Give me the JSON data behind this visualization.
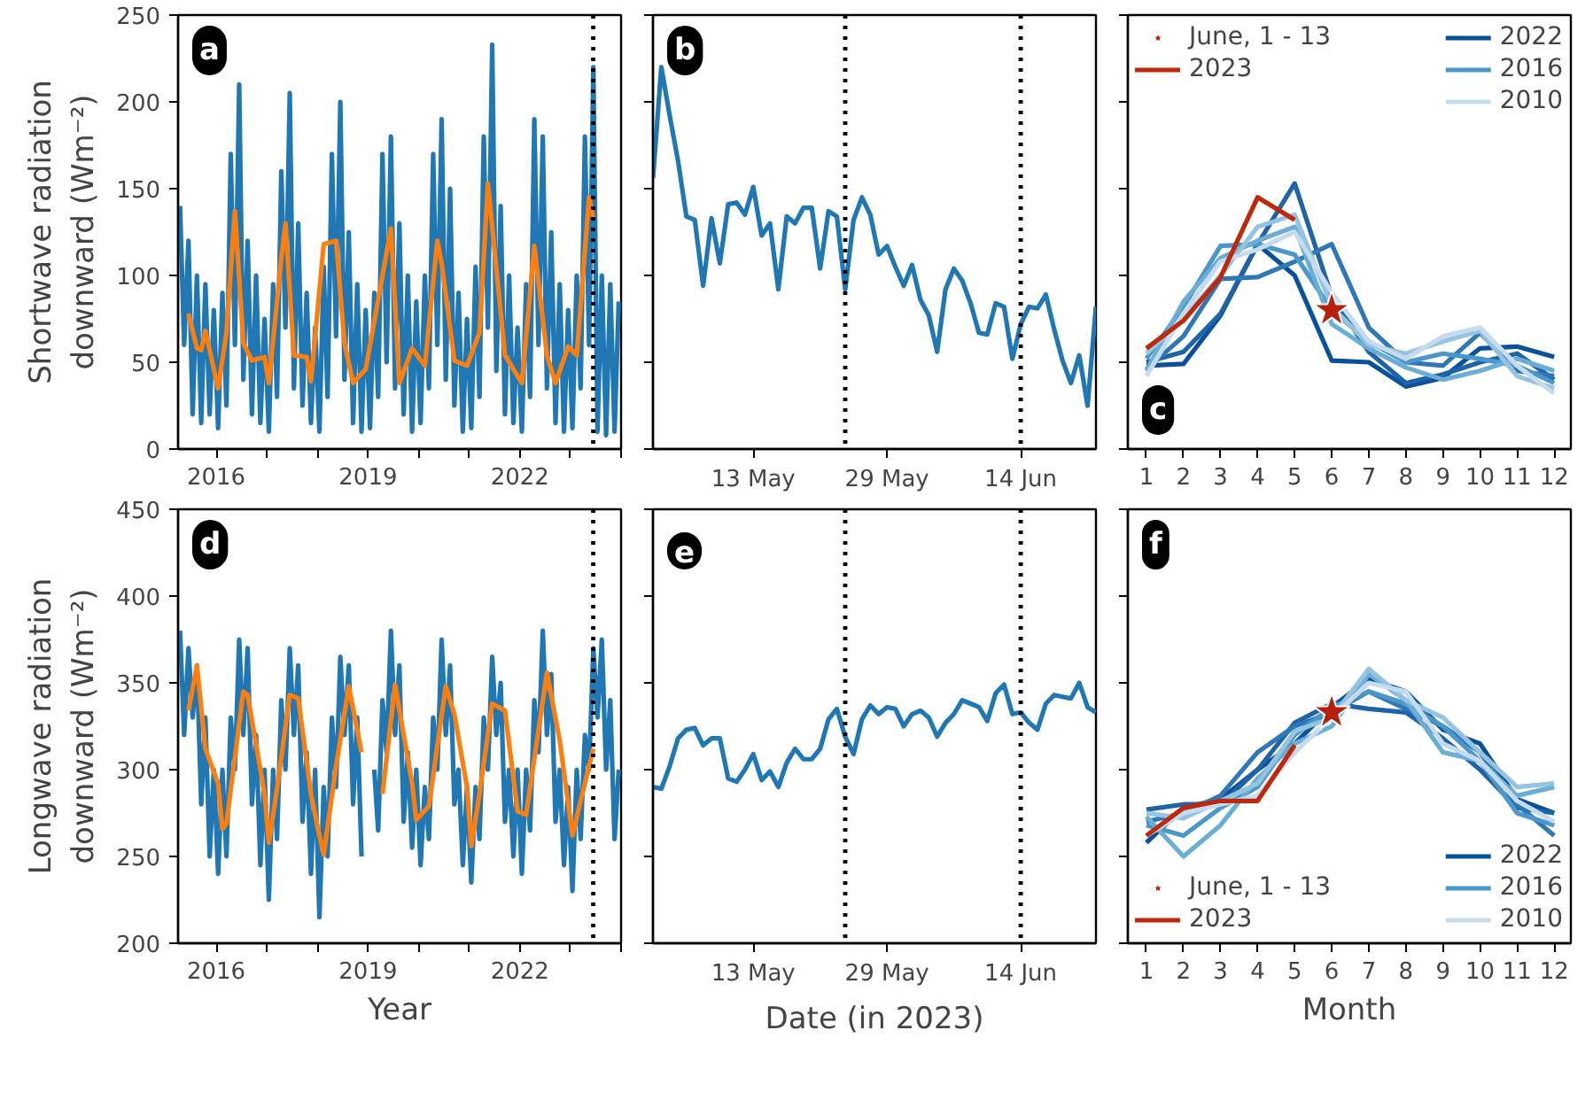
{
  "chart_data": [
    {
      "type": "line",
      "ylabel": "Shortwave radiation\ndownward (Wm⁻²)",
      "annotations": [
        "a"
      ],
      "xlim": [
        "2015-04",
        "2024"
      ],
      "ylim": [
        0,
        250
      ],
      "yticks": [
        0,
        50,
        100,
        150,
        200,
        250
      ],
      "xticks": [
        "2016",
        {
          "value": "2017",
          "label": null
        },
        {
          "value": "2018",
          "label": null
        },
        "2019",
        {
          "value": "2020",
          "label": null
        },
        {
          "value": "2021",
          "label": null
        },
        "2022",
        {
          "value": "2023",
          "label": null
        },
        {
          "value": "2024",
          "label": null
        }
      ],
      "grid": false,
      "ref_lines": [
        {
          "axis": "x",
          "value": "2023-06-14",
          "line_style": "dotted",
          "color": "#000000"
        }
      ],
      "series": [
        {
          "color": "#1f77b4",
          "x": [
            "2015-04-15",
            "2015-05-15",
            "2015-06-15",
            "2015-07-15",
            "2015-08-15",
            "2015-09-15",
            "2015-10-15",
            "2015-11-15",
            "2015-12-15",
            "2016-01-15",
            "2016-02-15",
            "2016-03-15",
            "2016-04-15",
            "2016-05-15",
            "2016-06-15",
            "2016-07-15",
            "2016-08-15",
            "2016-09-15",
            "2016-10-15",
            "2016-11-15",
            "2016-12-15",
            "2017-01-15",
            "2017-02-15",
            "2017-03-15",
            "2017-04-15",
            "2017-05-15",
            "2017-06-15",
            "2017-07-15",
            "2017-08-15",
            "2017-09-15",
            "2017-10-15",
            "2017-11-15",
            "2017-12-15",
            "2018-01-15",
            "2018-02-15",
            "2018-03-15",
            "2018-04-15",
            "2018-05-15",
            "2018-06-15",
            "2018-07-15",
            "2018-08-15",
            "2018-09-15",
            "2018-10-15",
            "2018-11-15",
            "2018-12-15",
            "2019-01-15",
            "2019-02-15",
            "2019-03-15",
            "2019-04-15",
            "2019-05-15",
            "2019-06-15",
            "2019-07-15",
            "2019-08-15",
            "2019-09-15",
            "2019-10-15",
            "2019-11-15",
            "2019-12-15",
            "2020-01-15",
            "2020-02-15",
            "2020-03-15",
            "2020-04-15",
            "2020-05-15",
            "2020-06-15",
            "2020-07-15",
            "2020-08-15",
            "2020-09-15",
            "2020-10-15",
            "2020-11-15",
            "2020-12-15",
            "2021-01-15",
            "2021-02-15",
            "2021-03-15",
            "2021-04-15",
            "2021-05-15",
            "2021-06-15",
            "2021-07-15",
            "2021-08-15",
            "2021-09-15",
            "2021-10-15",
            "2021-11-15",
            "2021-12-15",
            "2022-01-15",
            "2022-02-15",
            "2022-03-15",
            "2022-04-15",
            "2022-05-15",
            "2022-06-15",
            "2022-07-15",
            "2022-08-15",
            "2022-09-15",
            "2022-10-15",
            "2022-11-15",
            "2022-12-15",
            "2023-01-15",
            "2023-02-15",
            "2023-03-15",
            "2023-04-15",
            "2023-05-15",
            "2023-06-15",
            "2023-07-15",
            "2023-08-15",
            "2023-09-15",
            "2023-10-15",
            "2023-11-15",
            "2023-12-15"
          ],
          "values": [
            140,
            60,
            120,
            20,
            100,
            15,
            95,
            20,
            80,
            12,
            90,
            25,
            170,
            60,
            210,
            40,
            120,
            20,
            100,
            15,
            75,
            10,
            95,
            30,
            160,
            70,
            205,
            35,
            130,
            25,
            90,
            15,
            70,
            10,
            105,
            30,
            170,
            65,
            200,
            40,
            125,
            15,
            95,
            10,
            80,
            12,
            90,
            30,
            170,
            50,
            180,
            35,
            130,
            20,
            100,
            10,
            85,
            15,
            100,
            35,
            170,
            60,
            190,
            40,
            150,
            25,
            90,
            10,
            75,
            12,
            105,
            30,
            180,
            70,
            233,
            45,
            140,
            20,
            100,
            15,
            70,
            10,
            95,
            30,
            190,
            60,
            180,
            35,
            125,
            15,
            95,
            10,
            80,
            12,
            100,
            35,
            180,
            60,
            220,
            10,
            100,
            8,
            95,
            10,
            85
          ]
        },
        {
          "color": "#ff7f0e",
          "x": [
            "2015-06-15",
            "2015-08-15",
            "2015-09-15",
            "2015-10-15",
            "2016-01-15",
            "2016-03-15",
            "2016-05-15",
            "2016-07-15",
            "2016-09-15",
            "2016-12-15",
            "2017-01-15",
            "2017-04-15",
            "2017-05-15",
            "2017-07-15",
            "2017-10-15",
            "2017-11-15",
            "2018-02-15",
            "2018-05-15",
            "2018-07-15",
            "2018-09-15",
            "2018-12-15",
            "2019-06-15",
            "2019-08-15",
            "2019-11-15",
            "2020-02-15",
            "2020-05-15",
            "2020-06-15",
            "2020-09-15",
            "2020-12-15",
            "2021-03-15",
            "2021-05-15",
            "2021-09-15",
            "2022-01-15",
            "2022-04-15",
            "2022-07-15",
            "2022-09-15",
            "2022-12-15",
            "2023-02-15",
            "2023-05-15",
            "2023-06-15"
          ],
          "values": [
            78,
            58,
            57,
            68,
            35,
            67,
            137,
            61,
            51,
            53,
            38,
            110,
            130,
            54,
            53,
            39,
            118,
            120,
            61,
            38,
            46,
            127,
            38,
            58,
            48,
            120,
            107,
            51,
            48,
            67,
            153,
            54,
            38,
            117,
            54,
            38,
            59,
            54,
            145,
            133
          ]
        }
      ]
    },
    {
      "type": "line",
      "annotations": [
        "b"
      ],
      "xlim": [
        "2023-05-01",
        "2023-06-23"
      ],
      "ylim": [
        0,
        250
      ],
      "yticks": [
        0,
        50,
        100,
        150,
        200,
        250
      ],
      "tick_labels": "x",
      "grid": false,
      "xticks": [
        {
          "value": "2023-05-13",
          "label": "13 May"
        },
        {
          "value": "2023-05-29",
          "label": "29 May"
        },
        {
          "value": "2023-06-14",
          "label": "14 Jun"
        }
      ],
      "ref_lines": [
        {
          "axis": "x",
          "value": "2023-05-24",
          "line_style": "dotted",
          "color": "#000000"
        },
        {
          "axis": "x",
          "value": "2023-06-14",
          "line_style": "dotted",
          "color": "#000000"
        }
      ],
      "series": [
        {
          "color": "#1f77b4",
          "x": [
            "2023-05-01",
            "2023-05-02",
            "2023-05-03",
            "2023-05-04",
            "2023-05-05",
            "2023-05-06",
            "2023-05-07",
            "2023-05-08",
            "2023-05-09",
            "2023-05-10",
            "2023-05-11",
            "2023-05-12",
            "2023-05-13",
            "2023-05-14",
            "2023-05-15",
            "2023-05-16",
            "2023-05-17",
            "2023-05-18",
            "2023-05-19",
            "2023-05-20",
            "2023-05-21",
            "2023-05-22",
            "2023-05-23",
            "2023-05-24",
            "2023-05-25",
            "2023-05-26",
            "2023-05-27",
            "2023-05-28",
            "2023-05-29",
            "2023-05-30",
            "2023-05-31",
            "2023-06-01",
            "2023-06-02",
            "2023-06-03",
            "2023-06-04",
            "2023-06-05",
            "2023-06-06",
            "2023-06-07",
            "2023-06-08",
            "2023-06-09",
            "2023-06-10",
            "2023-06-11",
            "2023-06-12",
            "2023-06-13",
            "2023-06-14",
            "2023-06-15",
            "2023-06-16",
            "2023-06-17",
            "2023-06-18",
            "2023-06-19",
            "2023-06-20",
            "2023-06-21",
            "2023-06-22",
            "2023-06-23"
          ],
          "values": [
            156,
            220,
            192,
            166,
            134,
            132,
            94,
            133,
            107,
            141,
            142,
            135,
            151,
            123,
            130,
            92,
            134,
            130,
            139,
            139,
            104,
            137,
            134,
            92,
            132,
            145,
            135,
            112,
            117,
            105,
            94,
            106,
            86,
            77,
            56,
            92,
            104,
            97,
            84,
            67,
            66,
            84,
            82,
            52,
            72,
            82,
            81,
            89,
            69,
            51,
            38,
            54,
            25,
            82
          ]
        }
      ]
    },
    {
      "type": "line",
      "annotations": [
        "c"
      ],
      "xlim": [
        0.5,
        12.45
      ],
      "ylim": [
        0,
        250
      ],
      "yticks": [
        0,
        50,
        100,
        150,
        200,
        250
      ],
      "xticks": [
        1,
        2,
        3,
        4,
        5,
        6,
        7,
        8,
        9,
        10,
        11,
        12
      ],
      "tick_labels": "x",
      "grid": false,
      "legend": "top",
      "series": [
        {
          "name": "2022",
          "color": "#08519c",
          "x": [
            1,
            2,
            3,
            4,
            5,
            6,
            7,
            8,
            9,
            10,
            11,
            12
          ],
          "values": [
            48,
            49,
            77,
            118,
            100,
            51,
            50,
            36,
            41,
            58,
            59,
            53
          ]
        },
        {
          "color": "#1f63a8",
          "x": [
            1,
            2,
            3,
            4,
            5,
            6,
            7,
            8,
            9,
            10,
            11,
            12
          ],
          "values": [
            50,
            56,
            78,
            118,
            153,
            88,
            56,
            38,
            43,
            50,
            55,
            40
          ]
        },
        {
          "color": "#2f78b8",
          "x": [
            1,
            2,
            3,
            4,
            5,
            6,
            7,
            8,
            9,
            10,
            11,
            12
          ],
          "values": [
            46,
            65,
            98,
            99,
            108,
            118,
            70,
            50,
            48,
            67,
            45,
            42
          ]
        },
        {
          "name": "2016",
          "color": "#4a98c9",
          "x": [
            1,
            2,
            3,
            4,
            5,
            6,
            7,
            8,
            9,
            10,
            11,
            12
          ],
          "values": [
            52,
            82,
            117,
            118,
            112,
            80,
            62,
            50,
            55,
            52,
            48,
            38
          ]
        },
        {
          "color": "#6aaed6",
          "x": [
            1,
            2,
            3,
            4,
            5,
            6,
            7,
            8,
            9,
            10,
            11,
            12
          ],
          "values": [
            45,
            85,
            110,
            120,
            128,
            72,
            58,
            47,
            40,
            45,
            52,
            45
          ]
        },
        {
          "color": "#94c4df",
          "x": [
            1,
            2,
            3,
            4,
            5,
            6,
            7,
            8,
            9,
            10,
            11,
            12
          ],
          "values": [
            55,
            75,
            100,
            128,
            135,
            82,
            60,
            55,
            62,
            68,
            42,
            35
          ]
        },
        {
          "name": "2010",
          "color": "#c6dbef",
          "x": [
            1,
            2,
            3,
            4,
            5,
            6,
            7,
            8,
            9,
            10,
            11,
            12
          ],
          "values": [
            42,
            78,
            108,
            115,
            125,
            90,
            62,
            52,
            65,
            70,
            48,
            32
          ]
        },
        {
          "name": "2023",
          "color": "#c0280c",
          "x": [
            1,
            2,
            3,
            4,
            5
          ],
          "values": [
            58,
            74,
            99,
            145,
            132
          ]
        },
        {
          "name": "June, 1 - 13",
          "type": "scatter",
          "marker": "star",
          "color": "#b5200d",
          "x": [
            6
          ],
          "values": [
            80
          ]
        }
      ]
    },
    {
      "type": "line",
      "ylabel": "Longwave radiation\ndownward (Wm⁻²)",
      "xlabel": "Year",
      "annotations": [
        "d"
      ],
      "xlim": [
        "2015-04",
        "2024"
      ],
      "ylim": [
        200,
        450
      ],
      "yticks": [
        200,
        250,
        300,
        350,
        400,
        450
      ],
      "xticks": [
        "2016",
        {
          "value": "2017",
          "label": null
        },
        {
          "value": "2018",
          "label": null
        },
        "2019",
        {
          "value": "2020",
          "label": null
        },
        {
          "value": "2021",
          "label": null
        },
        "2022",
        {
          "value": "2023",
          "label": null
        },
        {
          "value": "2024",
          "label": null
        }
      ],
      "grid": false,
      "ref_lines": [
        {
          "axis": "x",
          "value": "2023-06-14",
          "line_style": "dotted",
          "color": "#000000"
        }
      ],
      "series": [
        {
          "color": "#1f77b4",
          "x": [
            "2015-04-15",
            "2015-05-15",
            "2015-06-15",
            "2015-07-15",
            "2015-08-15",
            "2015-09-15",
            "2015-10-15",
            "2015-11-15",
            "2015-12-15",
            "2016-01-15",
            "2016-02-15",
            "2016-03-15",
            "2016-04-15",
            "2016-05-15",
            "2016-06-15",
            "2016-07-15",
            "2016-08-15",
            "2016-09-15",
            "2016-10-15",
            "2016-11-15",
            "2016-12-15",
            "2017-01-15",
            "2017-02-15",
            "2017-03-15",
            "2017-04-15",
            "2017-05-15",
            "2017-06-15",
            "2017-07-15",
            "2017-08-15",
            "2017-09-15",
            "2017-10-15",
            "2017-11-15",
            "2017-12-15",
            "2018-01-15",
            "2018-02-15",
            "2018-03-15",
            "2018-04-15",
            "2018-05-15",
            "2018-06-15",
            "2018-07-15",
            "2018-08-15",
            "2018-09-15",
            "2018-10-15",
            "2018-11-15",
            "2018-12-15",
            "2019-01-15",
            "2019-02-15",
            "2019-03-15",
            "2019-04-15",
            "2019-05-15",
            "2019-06-15",
            "2019-07-15",
            "2019-08-15",
            "2019-09-15",
            "2019-10-15",
            "2019-11-15",
            "2019-12-15",
            "2020-01-15",
            "2020-02-15",
            "2020-03-15",
            "2020-04-15",
            "2020-05-15",
            "2020-06-15",
            "2020-07-15",
            "2020-08-15",
            "2020-09-15",
            "2020-10-15",
            "2020-11-15",
            "2020-12-15",
            "2021-01-15",
            "2021-02-15",
            "2021-03-15",
            "2021-04-15",
            "2021-05-15",
            "2021-06-15",
            "2021-07-15",
            "2021-08-15",
            "2021-09-15",
            "2021-10-15",
            "2021-11-15",
            "2021-12-15",
            "2022-01-15",
            "2022-02-15",
            "2022-03-15",
            "2022-04-15",
            "2022-05-15",
            "2022-06-15",
            "2022-07-15",
            "2022-08-15",
            "2022-09-15",
            "2022-10-15",
            "2022-11-15",
            "2022-12-15",
            "2023-01-15",
            "2023-02-15",
            "2023-03-15",
            "2023-04-15",
            "2023-05-15",
            "2023-06-15",
            "2023-07-15",
            "2023-08-15",
            "2023-09-15",
            "2023-10-15",
            "2023-11-15",
            "2023-12-15"
          ],
          "values": [
            380,
            320,
            370,
            330,
            360,
            280,
            330,
            250,
            300,
            240,
            300,
            250,
            330,
            300,
            375,
            320,
            370,
            280,
            320,
            245,
            300,
            225,
            300,
            260,
            340,
            300,
            370,
            320,
            360,
            270,
            310,
            240,
            300,
            215,
            290,
            250,
            330,
            290,
            365,
            320,
            360,
            280,
            330,
            250,
            null,
            null,
            300,
            265,
            340,
            310,
            380,
            320,
            360,
            270,
            310,
            255,
            300,
            245,
            290,
            260,
            330,
            300,
            375,
            320,
            360,
            280,
            300,
            245,
            290,
            235,
            290,
            260,
            330,
            300,
            365,
            320,
            350,
            270,
            300,
            250,
            300,
            240,
            300,
            265,
            340,
            310,
            380,
            320,
            355,
            270,
            300,
            245,
            290,
            230,
            300,
            260,
            320,
            300,
            370,
            330,
            375,
            300,
            340,
            260,
            300
          ]
        },
        {
          "color": "#ff7f0e",
          "x": [
            "2015-06-15",
            "2015-08-15",
            "2015-10-15",
            "2016-01-15",
            "2016-02-15",
            "2016-03-15",
            "2016-07-15",
            "2016-08-15",
            "2016-12-15",
            "2017-01-15",
            "2017-03-15",
            "2017-06-15",
            "2017-08-15",
            "2017-11-15",
            "2018-01-15",
            "2018-02-15",
            "2018-05-15",
            "2018-08-15",
            "2018-11-15",
            "2019-01-15",
            "2019-04-15",
            "2019-07-15",
            "2019-11-15",
            "2019-12-15",
            "2020-03-15",
            "2020-07-15",
            "2020-09-15",
            "2020-12-15",
            "2021-01-15",
            "2021-03-15",
            "2021-06-15",
            "2021-09-15",
            "2021-12-15",
            "2022-02-15",
            "2022-07-15",
            "2022-10-15",
            "2023-01-15",
            "2023-03-15",
            "2023-06-15"
          ],
          "values": [
            334,
            360,
            312,
            292,
            266,
            269,
            345,
            343,
            286,
            258,
            289,
            343,
            341,
            286,
            262,
            251,
            302,
            348,
            310,
            null,
            286,
            349,
            292,
            271,
            279,
            348,
            332,
            290,
            256,
            286,
            338,
            334,
            276,
            274,
            356,
            317,
            262,
            282,
            312
          ]
        }
      ]
    },
    {
      "type": "line",
      "xlabel": "Date (in 2023)",
      "annotations": [
        "e"
      ],
      "xlim": [
        "2023-05-01",
        "2023-06-23"
      ],
      "ylim": [
        200,
        450
      ],
      "yticks": [
        200,
        250,
        300,
        350,
        400,
        450
      ],
      "tick_labels": "x",
      "grid": false,
      "xticks": [
        {
          "value": "2023-05-13",
          "label": "13 May"
        },
        {
          "value": "2023-05-29",
          "label": "29 May"
        },
        {
          "value": "2023-06-14",
          "label": "14 Jun"
        }
      ],
      "ref_lines": [
        {
          "axis": "x",
          "value": "2023-05-24",
          "line_style": "dotted",
          "color": "#000000"
        },
        {
          "axis": "x",
          "value": "2023-06-14",
          "line_style": "dotted",
          "color": "#000000"
        }
      ],
      "series": [
        {
          "color": "#1f77b4",
          "x": [
            "2023-05-01",
            "2023-05-02",
            "2023-05-03",
            "2023-05-04",
            "2023-05-05",
            "2023-05-06",
            "2023-05-07",
            "2023-05-08",
            "2023-05-09",
            "2023-05-10",
            "2023-05-11",
            "2023-05-12",
            "2023-05-13",
            "2023-05-14",
            "2023-05-15",
            "2023-05-16",
            "2023-05-17",
            "2023-05-18",
            "2023-05-19",
            "2023-05-20",
            "2023-05-21",
            "2023-05-22",
            "2023-05-23",
            "2023-05-24",
            "2023-05-25",
            "2023-05-26",
            "2023-05-27",
            "2023-05-28",
            "2023-05-29",
            "2023-05-30",
            "2023-05-31",
            "2023-06-01",
            "2023-06-02",
            "2023-06-03",
            "2023-06-04",
            "2023-06-05",
            "2023-06-06",
            "2023-06-07",
            "2023-06-08",
            "2023-06-09",
            "2023-06-10",
            "2023-06-11",
            "2023-06-12",
            "2023-06-13",
            "2023-06-14",
            "2023-06-15",
            "2023-06-16",
            "2023-06-17",
            "2023-06-18",
            "2023-06-19",
            "2023-06-20",
            "2023-06-21",
            "2023-06-22",
            "2023-06-23"
          ],
          "values": [
            290,
            289,
            302,
            318,
            323,
            324,
            314,
            318,
            318,
            295,
            293,
            300,
            309,
            294,
            299,
            290,
            304,
            312,
            306,
            306,
            312,
            329,
            335,
            319,
            309,
            329,
            337,
            332,
            336,
            335,
            325,
            332,
            334,
            330,
            319,
            327,
            332,
            340,
            338,
            336,
            328,
            344,
            349,
            332,
            333,
            327,
            323,
            338,
            343,
            342,
            341,
            350,
            336,
            333
          ]
        }
      ]
    },
    {
      "type": "line",
      "xlabel": "Month",
      "annotations": [
        "f"
      ],
      "xlim": [
        0.5,
        12.45
      ],
      "ylim": [
        200,
        450
      ],
      "yticks": [
        200,
        250,
        300,
        350,
        400,
        450
      ],
      "xticks": [
        1,
        2,
        3,
        4,
        5,
        6,
        7,
        8,
        9,
        10,
        11,
        12
      ],
      "tick_labels": "x",
      "grid": false,
      "legend": "bottom",
      "series": [
        {
          "name": "2022",
          "color": "#08519c",
          "x": [
            1,
            2,
            3,
            4,
            5,
            6,
            7,
            8,
            9,
            10,
            11,
            12
          ],
          "values": [
            258,
            278,
            283,
            300,
            315,
            336,
            352,
            345,
            323,
            315,
            283,
            275
          ]
        },
        {
          "color": "#1f63a8",
          "x": [
            1,
            2,
            3,
            4,
            5,
            6,
            7,
            8,
            9,
            10,
            11,
            12
          ],
          "values": [
            277,
            280,
            280,
            300,
            327,
            338,
            335,
            333,
            318,
            300,
            278,
            275
          ]
        },
        {
          "color": "#2f78b8",
          "x": [
            1,
            2,
            3,
            4,
            5,
            6,
            7,
            8,
            9,
            10,
            11,
            12
          ],
          "values": [
            270,
            275,
            285,
            310,
            325,
            333,
            345,
            335,
            325,
            310,
            280,
            262
          ]
        },
        {
          "name": "2016",
          "color": "#4a98c9",
          "x": [
            1,
            2,
            3,
            4,
            5,
            6,
            7,
            8,
            9,
            10,
            11,
            12
          ],
          "values": [
            268,
            262,
            278,
            290,
            320,
            336,
            345,
            338,
            325,
            305,
            275,
            268
          ]
        },
        {
          "color": "#6aaed6",
          "x": [
            1,
            2,
            3,
            4,
            5,
            6,
            7,
            8,
            9,
            10,
            11,
            12
          ],
          "values": [
            273,
            250,
            268,
            295,
            315,
            325,
            355,
            340,
            310,
            305,
            285,
            290
          ]
        },
        {
          "color": "#94c4df",
          "x": [
            1,
            2,
            3,
            4,
            5,
            6,
            7,
            8,
            9,
            10,
            11,
            12
          ],
          "values": [
            275,
            272,
            282,
            292,
            322,
            330,
            358,
            340,
            330,
            310,
            290,
            292
          ]
        },
        {
          "name": "2010",
          "color": "#c6dbef",
          "x": [
            1,
            2,
            3,
            4,
            5,
            6,
            7,
            8,
            9,
            10,
            11,
            12
          ],
          "values": [
            262,
            275,
            280,
            285,
            310,
            330,
            350,
            345,
            315,
            305,
            282,
            270
          ]
        },
        {
          "name": "2023",
          "color": "#c0280c",
          "x": [
            1,
            2,
            3,
            4,
            5
          ],
          "values": [
            262,
            278,
            282,
            282,
            314
          ]
        },
        {
          "name": "June, 1 - 13",
          "type": "scatter",
          "marker": "star",
          "color": "#b5200d",
          "x": [
            6
          ],
          "values": [
            333
          ]
        }
      ]
    }
  ]
}
